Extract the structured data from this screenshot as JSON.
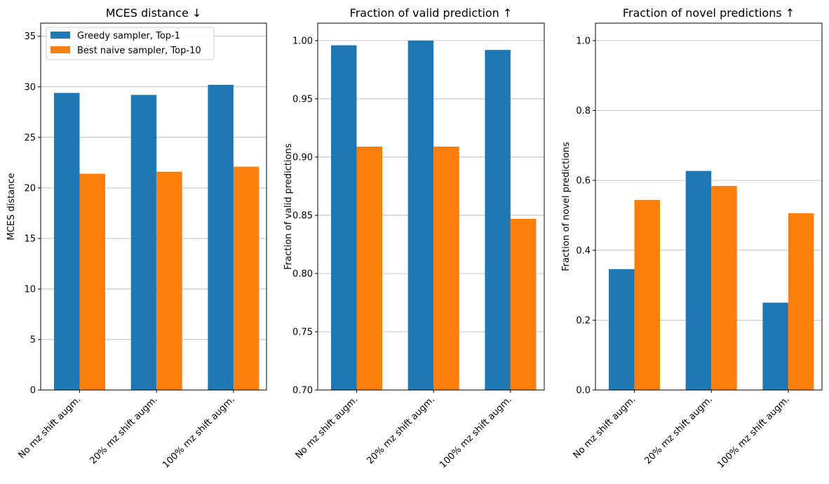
{
  "colors": {
    "series0": "#1f77b4",
    "series1": "#ff7f0e",
    "grid": "#b0b0b0"
  },
  "legend": {
    "placement": "upper-left of first panel",
    "items": [
      "Greedy sampler, Top-1",
      "Best naive sampler, Top-10"
    ]
  },
  "chart_data": [
    {
      "type": "bar",
      "title": "MCES distance ↓",
      "xlabel": "",
      "ylabel": "MCES distance",
      "categories": [
        "No mz shift augm.",
        "20% mz shift augm.",
        "100% mz shift augm."
      ],
      "series": [
        {
          "name": "Greedy sampler, Top-1",
          "values": [
            29.4,
            29.2,
            30.2
          ]
        },
        {
          "name": "Best naive sampler, Top-10",
          "values": [
            21.4,
            21.6,
            22.1
          ]
        }
      ],
      "ylim": [
        0,
        36.3
      ],
      "yticks": [
        0,
        5,
        10,
        15,
        20,
        25,
        30,
        35
      ],
      "ytick_labels": [
        "0",
        "5",
        "10",
        "15",
        "20",
        "25",
        "30",
        "35"
      ],
      "grid": "y"
    },
    {
      "type": "bar",
      "title": "Fraction of valid prediction ↑",
      "xlabel": "",
      "ylabel": "Fraction of valid predictions",
      "categories": [
        "No mz shift augm.",
        "20% mz shift augm.",
        "100% mz shift augm."
      ],
      "series": [
        {
          "name": "Greedy sampler, Top-1",
          "values": [
            0.996,
            1.0,
            0.992
          ]
        },
        {
          "name": "Best naive sampler, Top-10",
          "values": [
            0.909,
            0.909,
            0.847
          ]
        }
      ],
      "ylim": [
        0.7,
        1.015
      ],
      "yticks": [
        0.7,
        0.75,
        0.8,
        0.85,
        0.9,
        0.95,
        1.0
      ],
      "ytick_labels": [
        "0.70",
        "0.75",
        "0.80",
        "0.85",
        "0.90",
        "0.95",
        "1.00"
      ],
      "grid": "y"
    },
    {
      "type": "bar",
      "title": "Fraction of novel predictions ↑",
      "xlabel": "",
      "ylabel": "Fraction of novel predictions",
      "categories": [
        "No mz shift augm.",
        "20% mz shift augm.",
        "100% mz shift augm."
      ],
      "series": [
        {
          "name": "Greedy sampler, Top-1",
          "values": [
            0.346,
            0.627,
            0.25
          ]
        },
        {
          "name": "Best naive sampler, Top-10",
          "values": [
            0.544,
            0.584,
            0.506
          ]
        }
      ],
      "ylim": [
        0,
        1.05
      ],
      "yticks": [
        0.0,
        0.2,
        0.4,
        0.6,
        0.8,
        1.0
      ],
      "ytick_labels": [
        "0.0",
        "0.2",
        "0.4",
        "0.6",
        "0.8",
        "1.0"
      ],
      "grid": "y"
    }
  ]
}
